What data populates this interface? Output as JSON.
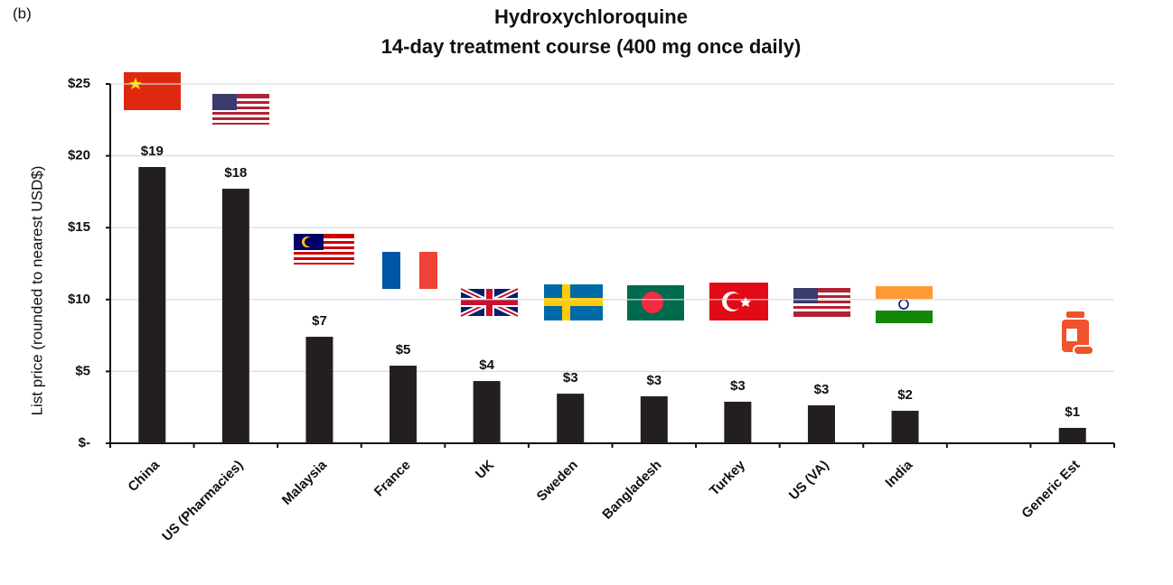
{
  "chart_data": {
    "type": "bar",
    "panel_label": "(b)",
    "title": "Hydroxychloroquine",
    "subtitle": "14-day treatment course (400 mg once daily)",
    "y_label": "List price (rounded to nearest USD$)",
    "categories": [
      "China",
      "US (Pharmacies)",
      "Malaysia",
      "France",
      "UK",
      "Sweden",
      "Bangladesh",
      "Turkey",
      "US (VA)",
      "India",
      null,
      "Generic Est"
    ],
    "values": [
      19.22,
      17.71,
      7.41,
      5.4,
      4.33,
      3.45,
      3.27,
      2.89,
      2.64,
      2.26,
      null,
      1.07
    ],
    "value_labels": [
      "$19",
      "$18",
      "$7",
      "$5",
      "$4",
      "$3",
      "$3",
      "$3",
      "$3",
      "$2",
      null,
      "$1"
    ],
    "color": "#231f20",
    "ylim": [
      0,
      25
    ],
    "yticks": [
      {
        "value": 0,
        "label": "$-"
      },
      {
        "value": 5,
        "label": "$5"
      },
      {
        "value": 10,
        "label": "$10"
      },
      {
        "value": 15,
        "label": "$15"
      },
      {
        "value": 20,
        "label": "$20"
      },
      {
        "value": 25,
        "label": "$25"
      }
    ],
    "grid": true
  }
}
